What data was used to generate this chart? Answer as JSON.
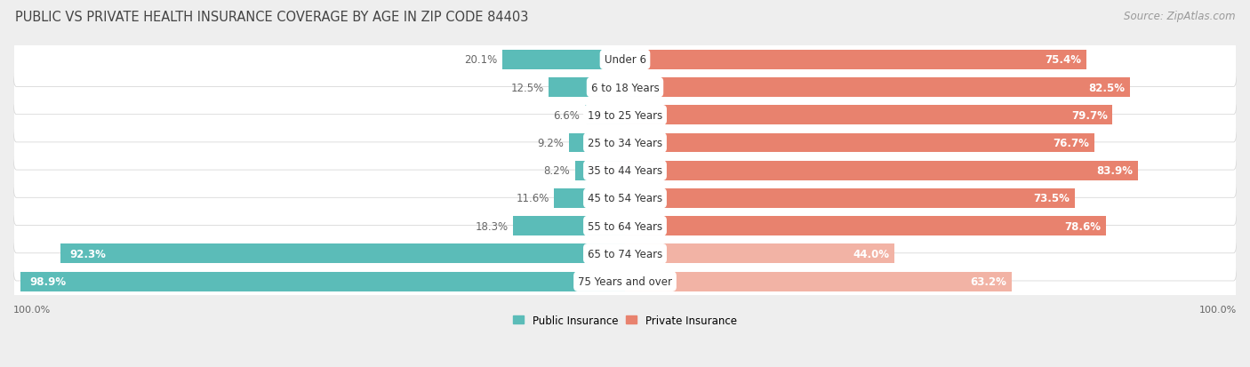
{
  "title": "PUBLIC VS PRIVATE HEALTH INSURANCE COVERAGE BY AGE IN ZIP CODE 84403",
  "source": "Source: ZipAtlas.com",
  "categories": [
    "Under 6",
    "6 to 18 Years",
    "19 to 25 Years",
    "25 to 34 Years",
    "35 to 44 Years",
    "45 to 54 Years",
    "55 to 64 Years",
    "65 to 74 Years",
    "75 Years and over"
  ],
  "public_values": [
    20.1,
    12.5,
    6.6,
    9.2,
    8.2,
    11.6,
    18.3,
    92.3,
    98.9
  ],
  "private_values": [
    75.4,
    82.5,
    79.7,
    76.7,
    83.9,
    73.5,
    78.6,
    44.0,
    63.2
  ],
  "public_color": "#5bbcb8",
  "private_color": "#e8826e",
  "private_color_light": "#f2b3a5",
  "bg_color": "#eeeeee",
  "row_bg_color": "#ffffff",
  "row_border_color": "#d8d8d8",
  "title_color": "#444444",
  "dark_label_color": "#666666",
  "label_fontsize": 8.5,
  "title_fontsize": 10.5,
  "source_fontsize": 8.5,
  "axis_label_fontsize": 8,
  "legend_fontsize": 8.5,
  "x_axis_left_label": "100.0%",
  "x_axis_right_label": "100.0%"
}
